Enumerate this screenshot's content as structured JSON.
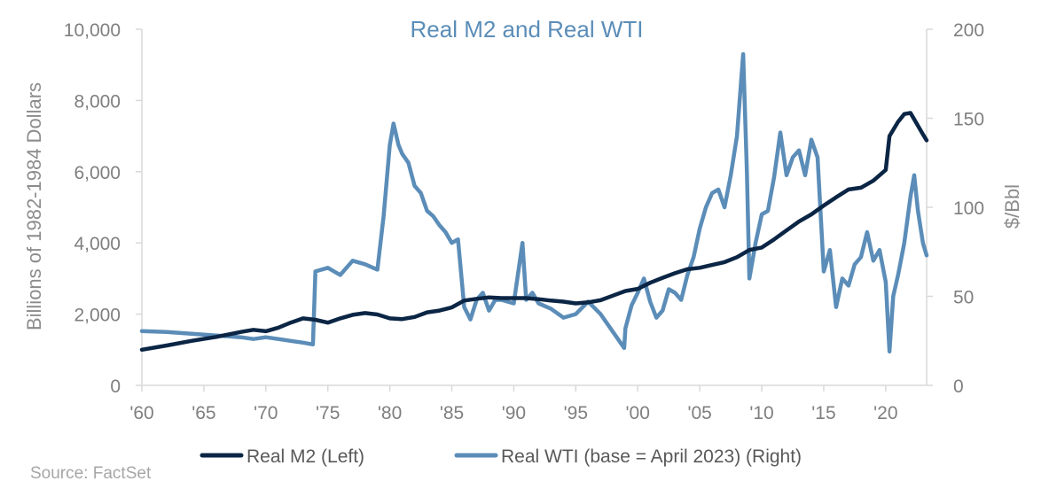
{
  "chart_data": {
    "type": "line",
    "title": "Real M2 and Real WTI",
    "ylabel": "Billions of 1982-1984 Dollars",
    "y2label": "$/Bbl",
    "xlim": [
      1960,
      2023.3
    ],
    "ylim": [
      0,
      10000
    ],
    "y2lim": [
      0,
      200
    ],
    "x_tick_labels": [
      "'60",
      "'65",
      "'70",
      "'75",
      "'80",
      "'85",
      "'90",
      "'95",
      "'00",
      "'05",
      "'10",
      "'15",
      "'20"
    ],
    "x_tick_values": [
      1960,
      1965,
      1970,
      1975,
      1980,
      1985,
      1990,
      1995,
      2000,
      2005,
      2010,
      2015,
      2020
    ],
    "y_ticks": [
      "0",
      "2,000",
      "4,000",
      "6,000",
      "8,000",
      "10,000"
    ],
    "y2_ticks": [
      "0",
      "50",
      "100",
      "150",
      "200"
    ],
    "legend_position": "bottom",
    "grid": false,
    "colors": {
      "m2": "#0b2545",
      "wti": "#5b8db8",
      "title": "#5b8db8"
    },
    "series": [
      {
        "name": "Real M2 (Left)",
        "axis": "left",
        "points": [
          [
            1960,
            1000
          ],
          [
            1962,
            1120
          ],
          [
            1964,
            1250
          ],
          [
            1966,
            1360
          ],
          [
            1968,
            1500
          ],
          [
            1969,
            1560
          ],
          [
            1970,
            1520
          ],
          [
            1971,
            1620
          ],
          [
            1972,
            1760
          ],
          [
            1973,
            1880
          ],
          [
            1974,
            1840
          ],
          [
            1975,
            1760
          ],
          [
            1976,
            1880
          ],
          [
            1977,
            1980
          ],
          [
            1978,
            2030
          ],
          [
            1979,
            1990
          ],
          [
            1980,
            1880
          ],
          [
            1981,
            1860
          ],
          [
            1982,
            1920
          ],
          [
            1983,
            2050
          ],
          [
            1984,
            2100
          ],
          [
            1985,
            2190
          ],
          [
            1986,
            2380
          ],
          [
            1987,
            2430
          ],
          [
            1988,
            2470
          ],
          [
            1989,
            2450
          ],
          [
            1990,
            2450
          ],
          [
            1991,
            2450
          ],
          [
            1992,
            2420
          ],
          [
            1993,
            2380
          ],
          [
            1994,
            2350
          ],
          [
            1995,
            2300
          ],
          [
            1996,
            2330
          ],
          [
            1997,
            2390
          ],
          [
            1998,
            2520
          ],
          [
            1999,
            2650
          ],
          [
            2000,
            2710
          ],
          [
            2001,
            2880
          ],
          [
            2002,
            3020
          ],
          [
            2003,
            3150
          ],
          [
            2004,
            3260
          ],
          [
            2005,
            3300
          ],
          [
            2006,
            3380
          ],
          [
            2007,
            3460
          ],
          [
            2008,
            3600
          ],
          [
            2009,
            3800
          ],
          [
            2010,
            3870
          ],
          [
            2011,
            4100
          ],
          [
            2012,
            4350
          ],
          [
            2013,
            4600
          ],
          [
            2014,
            4800
          ],
          [
            2015,
            5050
          ],
          [
            2016,
            5280
          ],
          [
            2017,
            5500
          ],
          [
            2018,
            5550
          ],
          [
            2019,
            5750
          ],
          [
            2020,
            6050
          ],
          [
            2020.3,
            7000
          ],
          [
            2021,
            7400
          ],
          [
            2021.5,
            7620
          ],
          [
            2022,
            7650
          ],
          [
            2022.5,
            7350
          ],
          [
            2023,
            7050
          ],
          [
            2023.3,
            6880
          ]
        ]
      },
      {
        "name": "Real WTI (base = April 2023) (Right)",
        "axis": "right",
        "points": [
          [
            1960,
            30.5
          ],
          [
            1962,
            30
          ],
          [
            1964,
            29
          ],
          [
            1966,
            28
          ],
          [
            1968,
            27
          ],
          [
            1969,
            26
          ],
          [
            1970,
            27
          ],
          [
            1971,
            26
          ],
          [
            1972,
            25
          ],
          [
            1973,
            24
          ],
          [
            1973.8,
            23
          ],
          [
            1974,
            64
          ],
          [
            1975,
            66
          ],
          [
            1976,
            62
          ],
          [
            1977,
            70
          ],
          [
            1978,
            68
          ],
          [
            1979,
            65
          ],
          [
            1979.5,
            95
          ],
          [
            1980,
            135
          ],
          [
            1980.3,
            147
          ],
          [
            1980.7,
            135
          ],
          [
            1981,
            130
          ],
          [
            1981.5,
            125
          ],
          [
            1982,
            112
          ],
          [
            1982.5,
            108
          ],
          [
            1983,
            98
          ],
          [
            1983.5,
            95
          ],
          [
            1984,
            90
          ],
          [
            1984.5,
            86
          ],
          [
            1985,
            80
          ],
          [
            1985.5,
            82
          ],
          [
            1986,
            44
          ],
          [
            1986.5,
            37
          ],
          [
            1987,
            48
          ],
          [
            1987.5,
            52
          ],
          [
            1988,
            42
          ],
          [
            1988.5,
            48
          ],
          [
            1989,
            48
          ],
          [
            1990,
            46
          ],
          [
            1990.7,
            80
          ],
          [
            1991,
            48
          ],
          [
            1991.5,
            52
          ],
          [
            1992,
            46
          ],
          [
            1993,
            43
          ],
          [
            1994,
            38
          ],
          [
            1995,
            40
          ],
          [
            1996,
            47
          ],
          [
            1997,
            40
          ],
          [
            1998,
            30
          ],
          [
            1998.9,
            21
          ],
          [
            1999,
            32
          ],
          [
            1999.5,
            45
          ],
          [
            2000,
            52
          ],
          [
            2000.5,
            60
          ],
          [
            2001,
            47
          ],
          [
            2001.5,
            38
          ],
          [
            2002,
            42
          ],
          [
            2002.5,
            54
          ],
          [
            2003,
            52
          ],
          [
            2003.5,
            48
          ],
          [
            2004,
            62
          ],
          [
            2004.5,
            72
          ],
          [
            2005,
            88
          ],
          [
            2005.5,
            100
          ],
          [
            2006,
            108
          ],
          [
            2006.5,
            110
          ],
          [
            2007,
            100
          ],
          [
            2007.5,
            118
          ],
          [
            2008,
            140
          ],
          [
            2008.5,
            186
          ],
          [
            2008.8,
            120
          ],
          [
            2009,
            60
          ],
          [
            2009.5,
            80
          ],
          [
            2010,
            96
          ],
          [
            2010.5,
            98
          ],
          [
            2011,
            117
          ],
          [
            2011.5,
            142
          ],
          [
            2012,
            118
          ],
          [
            2012.5,
            128
          ],
          [
            2013,
            132
          ],
          [
            2013.5,
            118
          ],
          [
            2014,
            138
          ],
          [
            2014.5,
            128
          ],
          [
            2015,
            64
          ],
          [
            2015.5,
            76
          ],
          [
            2016,
            44
          ],
          [
            2016.5,
            60
          ],
          [
            2017,
            56
          ],
          [
            2017.5,
            68
          ],
          [
            2018,
            72
          ],
          [
            2018.5,
            86
          ],
          [
            2019,
            70
          ],
          [
            2019.5,
            76
          ],
          [
            2020,
            58
          ],
          [
            2020.3,
            19
          ],
          [
            2020.6,
            50
          ],
          [
            2021,
            62
          ],
          [
            2021.5,
            80
          ],
          [
            2022,
            106
          ],
          [
            2022.3,
            118
          ],
          [
            2022.6,
            98
          ],
          [
            2023,
            80
          ],
          [
            2023.3,
            73
          ]
        ]
      }
    ]
  },
  "source": "Source: FactSet"
}
